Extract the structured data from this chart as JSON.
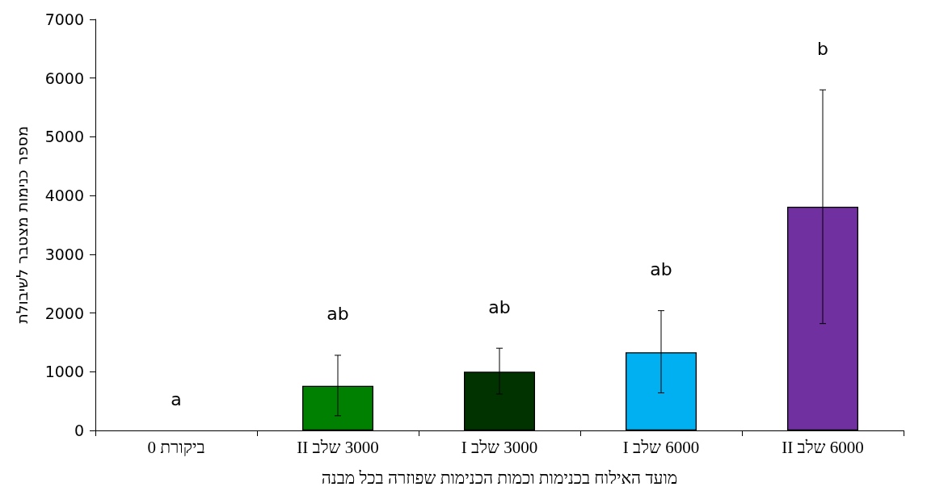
{
  "chart_data": {
    "type": "bar",
    "xlabel": "מועד האילוח בכנימות וכמות הכנימות שפוזרה בכל מבנה",
    "ylabel": "מספר כנימות מצטבר לשיבולת",
    "categories": [
      "ביקורת 0",
      "3000 שלב II",
      "3000 שלב I",
      "6000 שלב I",
      "6000 שלב II"
    ],
    "values": [
      0,
      760,
      1000,
      1330,
      3810
    ],
    "colors": [
      null,
      "#008000",
      "#003300",
      "#00b0f0",
      "#7030a0"
    ],
    "errors": [
      null,
      [
        250,
        1280
      ],
      [
        620,
        1400
      ],
      [
        640,
        2040
      ],
      [
        1820,
        5800
      ]
    ],
    "ylim": [
      0,
      7000
    ],
    "yticks": [
      0,
      1000,
      2000,
      3000,
      4000,
      5000,
      6000,
      7000
    ],
    "grid": false,
    "annotations": [
      "a",
      "ab",
      "ab",
      "ab",
      "b"
    ]
  }
}
